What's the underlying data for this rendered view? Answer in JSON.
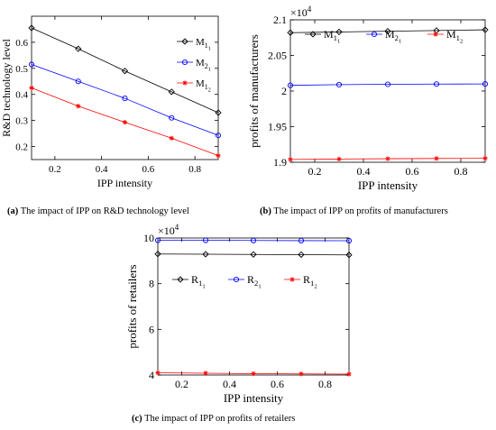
{
  "chart_data": [
    {
      "type": "line",
      "caption_tag": "(a)",
      "caption_text": "The impact of IPP on R&D technology level",
      "xlabel": "IPP intensity",
      "ylabel": "R&D technology level",
      "xlim": [
        0.1,
        0.9
      ],
      "ylim": [
        0.15,
        0.7
      ],
      "xticks": [
        "0.2",
        "0.4",
        "0.6",
        "0.8"
      ],
      "yticks": [
        "0.2",
        "0.3",
        "0.4",
        "0.5",
        "0.6"
      ],
      "exponent": "",
      "x": [
        0.1,
        0.3,
        0.5,
        0.7,
        0.9
      ],
      "series": [
        {
          "name": "M",
          "sub": "1",
          "subsub": "1",
          "color": "#000000",
          "marker": "diamond",
          "values": [
            0.655,
            0.575,
            0.49,
            0.41,
            0.33
          ]
        },
        {
          "name": "M",
          "sub": "2",
          "subsub": "1",
          "color": "#0000ff",
          "marker": "circle",
          "values": [
            0.515,
            0.45,
            0.385,
            0.31,
            0.243
          ]
        },
        {
          "name": "M",
          "sub": "1",
          "subsub": "2",
          "color": "#ff0000",
          "marker": "star",
          "values": [
            0.425,
            0.355,
            0.293,
            0.232,
            0.165
          ]
        }
      ],
      "legend": "top-right"
    },
    {
      "type": "line",
      "caption_tag": "(b)",
      "caption_text": "The impact of IPP on profits of manufacturers",
      "xlabel": "IPP intensity",
      "ylabel": "profits of manufacturers",
      "xlim": [
        0.1,
        0.9
      ],
      "ylim": [
        1.9,
        2.1
      ],
      "xticks": [
        "0.2",
        "0.4",
        "0.6",
        "0.8"
      ],
      "yticks": [
        "1.9",
        "1.95",
        "2",
        "2.05",
        "2.1"
      ],
      "exponent": "4",
      "x": [
        0.1,
        0.3,
        0.5,
        0.7,
        0.9
      ],
      "series": [
        {
          "name": "M",
          "sub": "1",
          "subsub": "1",
          "color": "#000000",
          "marker": "diamond",
          "values": [
            2.082,
            2.083,
            2.084,
            2.085,
            2.086
          ]
        },
        {
          "name": "M",
          "sub": "2",
          "subsub": "1",
          "color": "#0000ff",
          "marker": "circle",
          "values": [
            2.008,
            2.009,
            2.0095,
            2.0098,
            2.01
          ]
        },
        {
          "name": "M",
          "sub": "1",
          "subsub": "2",
          "color": "#ff0000",
          "marker": "star",
          "values": [
            1.904,
            1.9045,
            1.905,
            1.9053,
            1.9055
          ]
        }
      ],
      "legend": "top, horizontal"
    },
    {
      "type": "line",
      "caption_tag": "(c)",
      "caption_text": "The impact of IPP on profits of retailers",
      "xlabel": "IPP intensity",
      "ylabel": "profits of retailers",
      "xlim": [
        0.1,
        0.9
      ],
      "ylim": [
        4,
        10
      ],
      "xticks": [
        "0.2",
        "0.4",
        "0.6",
        "0.8"
      ],
      "yticks": [
        "4",
        "6",
        "8",
        "10"
      ],
      "exponent": "4",
      "x": [
        0.1,
        0.3,
        0.5,
        0.7,
        0.9
      ],
      "series": [
        {
          "name": "R",
          "sub": "1",
          "subsub": "1",
          "color": "#000000",
          "marker": "diamond",
          "values": [
            9.3,
            9.29,
            9.28,
            9.27,
            9.26
          ]
        },
        {
          "name": "R",
          "sub": "2",
          "subsub": "1",
          "color": "#0000ff",
          "marker": "circle",
          "values": [
            9.9,
            9.9,
            9.89,
            9.885,
            9.88
          ]
        },
        {
          "name": "R",
          "sub": "1",
          "subsub": "2",
          "color": "#ff0000",
          "marker": "star",
          "values": [
            4.1,
            4.08,
            4.06,
            4.05,
            4.04
          ]
        }
      ],
      "legend": "top, horizontal"
    }
  ]
}
